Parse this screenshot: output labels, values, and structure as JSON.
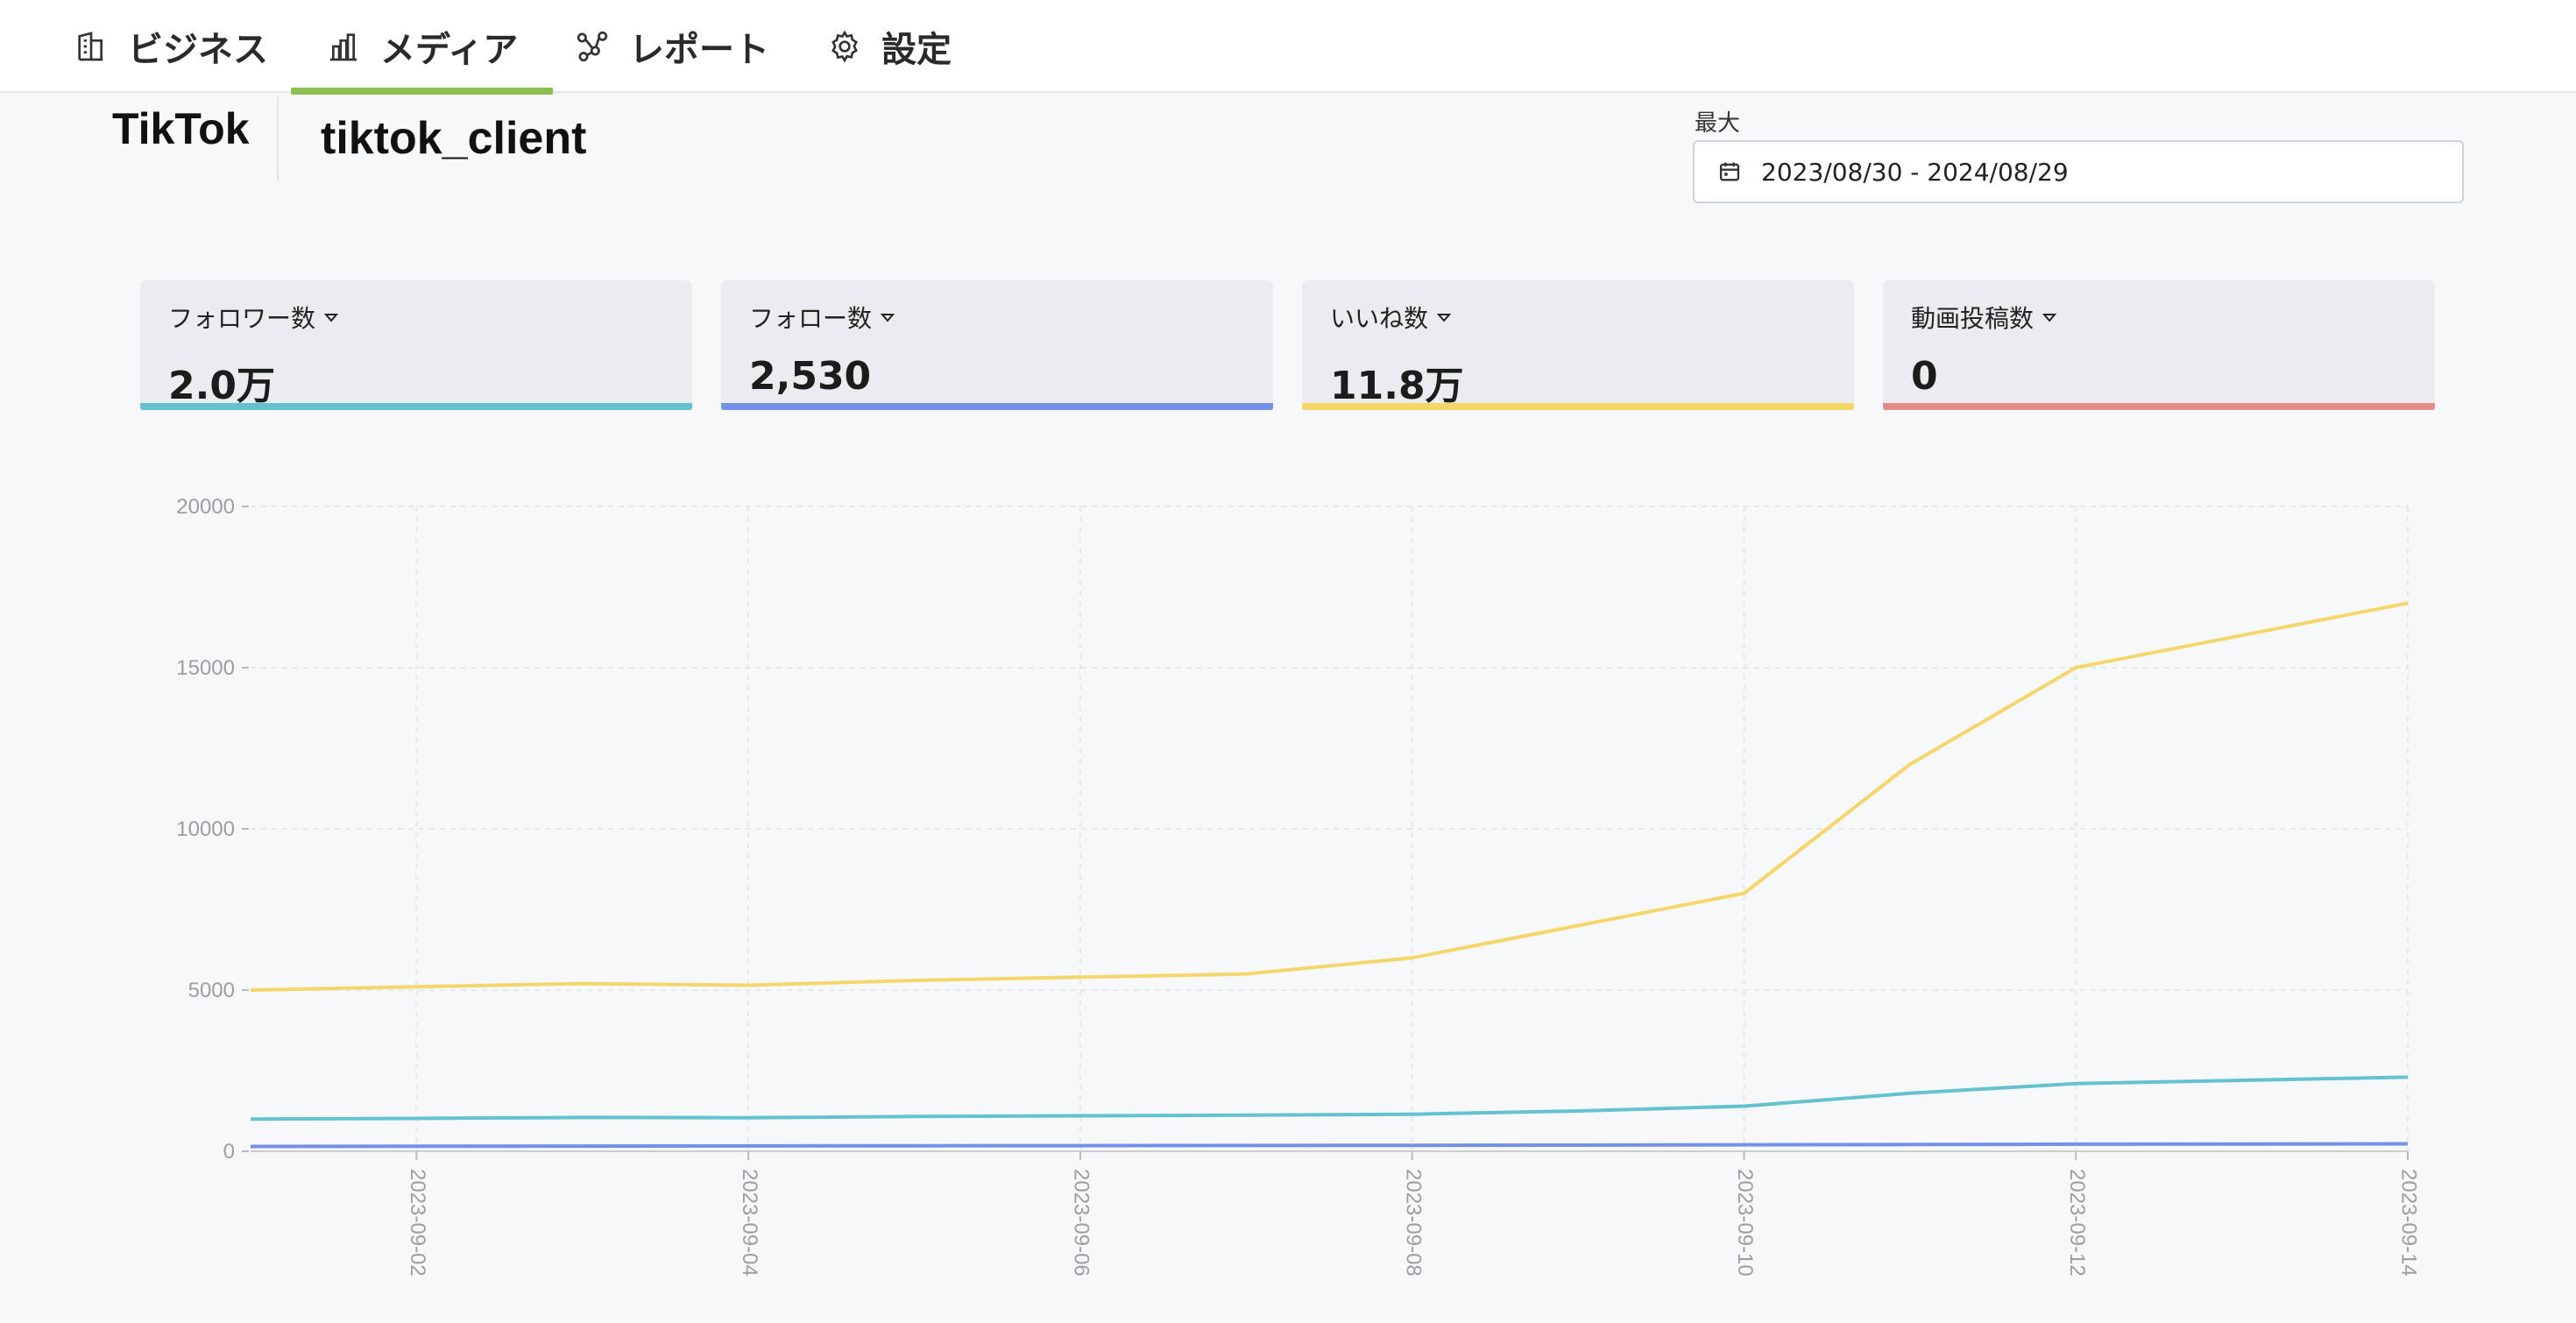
{
  "nav": {
    "items": [
      {
        "label": "ビジネス",
        "icon": "building-icon"
      },
      {
        "label": "メディア",
        "icon": "bar-chart-icon",
        "active": true
      },
      {
        "label": "レポート",
        "icon": "share-nodes-icon"
      },
      {
        "label": "設定",
        "icon": "gear-icon"
      }
    ]
  },
  "account": {
    "platform": "TikTok",
    "name": "tiktok_client"
  },
  "date_range": {
    "label": "最大",
    "value": "2023/08/30 - 2024/08/29",
    "icon": "calendar-icon"
  },
  "kpis": [
    {
      "label": "フォロワー数",
      "value": "2.0万",
      "color": "#63c2d0"
    },
    {
      "label": "フォロー数",
      "value": "2,530",
      "color": "#7490e8"
    },
    {
      "label": "いいね数",
      "value": "11.8万",
      "color": "#f5d66a"
    },
    {
      "label": "動画投稿数",
      "value": "0",
      "color": "#e38c8c"
    }
  ],
  "chart_data": {
    "type": "line",
    "x": [
      "2023-09-01",
      "2023-09-02",
      "2023-09-03",
      "2023-09-04",
      "2023-09-05",
      "2023-09-06",
      "2023-09-07",
      "2023-09-08",
      "2023-09-09",
      "2023-09-10",
      "2023-09-11",
      "2023-09-12",
      "2023-09-13",
      "2023-09-14"
    ],
    "x_tick_labels": [
      "2023-09-02",
      "2023-09-04",
      "2023-09-06",
      "2023-09-08",
      "2023-09-10",
      "2023-09-12",
      "2023-09-14"
    ],
    "ylim": [
      0,
      20000
    ],
    "y_ticks": [
      0,
      5000,
      10000,
      15000,
      20000
    ],
    "grid": true,
    "series": [
      {
        "color": "#f5d66a",
        "values": [
          5000,
          5100,
          5200,
          5150,
          5300,
          5400,
          5500,
          6000,
          7000,
          8000,
          12000,
          15000,
          16000,
          17000
        ]
      },
      {
        "color": "#63c2d0",
        "values": [
          1000,
          1020,
          1050,
          1040,
          1080,
          1100,
          1120,
          1150,
          1250,
          1400,
          1800,
          2100,
          2200,
          2300
        ]
      },
      {
        "color": "#7490e8",
        "values": [
          150,
          155,
          160,
          165,
          170,
          175,
          180,
          185,
          190,
          200,
          210,
          220,
          225,
          230
        ]
      }
    ]
  }
}
